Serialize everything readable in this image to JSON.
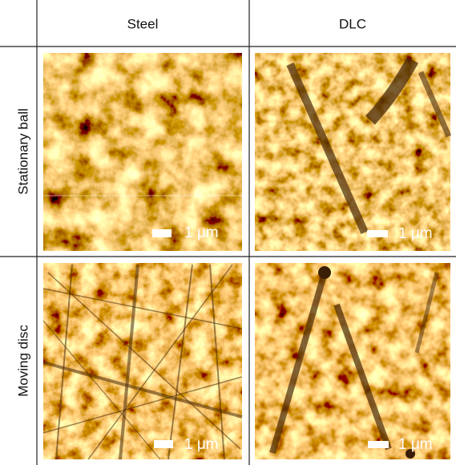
{
  "table": {
    "columns": [
      "Steel",
      "DLC"
    ],
    "rows": [
      {
        "label": "Stationary ball",
        "scale_bars": [
          "1 μm",
          "1 μm"
        ]
      },
      {
        "label": "Moving disc",
        "scale_bars": [
          "1 μm",
          "1 μm"
        ]
      }
    ]
  }
}
